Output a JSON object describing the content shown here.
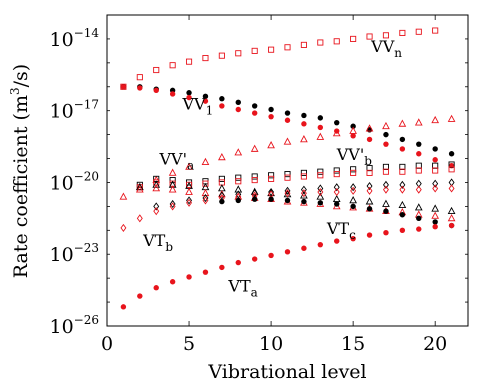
{
  "chart_data": {
    "type": "scatter",
    "xlabel": "Vibrational level",
    "ylabel": {
      "text": "Rate coefficient (",
      "unit_base": "m",
      "unit_exp": "3",
      "unit_rest": "/s)"
    },
    "xlim": [
      0,
      22
    ],
    "ylim_log10": [
      -26,
      -13
    ],
    "y_scale": "log",
    "x_ticks": [
      0,
      5,
      10,
      15,
      20
    ],
    "y_ticks": [
      {
        "base": "10",
        "exp": "−14"
      },
      {
        "base": "10",
        "exp": "−17"
      },
      {
        "base": "10",
        "exp": "−20"
      },
      {
        "base": "10",
        "exp": "−23"
      },
      {
        "base": "10",
        "exp": "−26"
      }
    ],
    "colors": {
      "black": "#000000",
      "red": "#e8141c"
    },
    "annotations": [
      {
        "label": "VV",
        "sub": "n",
        "at": [
          16.1,
          -14.3
        ]
      },
      {
        "label": "VV",
        "sub": "1",
        "at": [
          4.6,
          -16.7
        ]
      },
      {
        "label": "VV'",
        "sub": "a",
        "at": [
          3.2,
          -19.0
        ]
      },
      {
        "label": "VV'",
        "sub": "b",
        "at": [
          14.0,
          -18.8
        ]
      },
      {
        "label": "VT",
        "sub": "b",
        "at": [
          2.2,
          -22.4
        ]
      },
      {
        "label": "VT",
        "sub": "c",
        "at": [
          13.4,
          -21.9
        ]
      },
      {
        "label": "VT",
        "sub": "a",
        "at": [
          7.4,
          -24.3
        ]
      }
    ],
    "series": [
      {
        "marker": "square-open",
        "color": "#e8141c",
        "x": [
          1,
          2,
          3,
          4,
          5,
          6,
          7,
          8,
          9,
          10,
          11,
          12,
          13,
          14,
          15,
          16,
          17,
          18,
          19,
          20
        ],
        "log10_y": [
          -16.0,
          -15.6,
          -15.3,
          -15.1,
          -14.95,
          -14.8,
          -14.7,
          -14.6,
          -14.5,
          -14.45,
          -14.35,
          -14.25,
          -14.15,
          -14.1,
          -14.0,
          -13.9,
          -13.85,
          -13.75,
          -13.7,
          -13.65
        ]
      },
      {
        "marker": "dot",
        "color": "#000000",
        "x": [
          1,
          2,
          3,
          4,
          5,
          6,
          7,
          8,
          9,
          10,
          11,
          12,
          13,
          14,
          15,
          16,
          17,
          18,
          19,
          20,
          21
        ],
        "log10_y": [
          -16.0,
          -16.0,
          -16.1,
          -16.15,
          -16.25,
          -16.4,
          -16.5,
          -16.65,
          -16.8,
          -16.95,
          -17.1,
          -17.2,
          -17.3,
          -17.5,
          -17.65,
          -17.8,
          -18.0,
          -18.2,
          -18.4,
          -18.6,
          -18.8
        ]
      },
      {
        "marker": "dot",
        "color": "#e8141c",
        "x": [
          1,
          2,
          3,
          4,
          5,
          6,
          7,
          8,
          9,
          10,
          11,
          12,
          13,
          14,
          15,
          16,
          17,
          18,
          19,
          20,
          21
        ],
        "log10_y": [
          -16.0,
          -16.05,
          -16.15,
          -16.3,
          -16.45,
          -16.6,
          -16.8,
          -16.95,
          -17.1,
          -17.25,
          -17.4,
          -17.55,
          -17.7,
          -17.85,
          -18.05,
          -18.2,
          -18.4,
          -18.6,
          -18.8,
          -19.05,
          -19.3
        ]
      },
      {
        "marker": "triangle-open",
        "color": "#e8141c",
        "x": [
          1,
          2,
          3,
          4,
          5,
          6,
          7,
          8,
          9,
          10,
          11,
          12,
          13,
          14,
          15,
          16,
          17,
          18,
          19,
          20,
          21
        ],
        "log10_y": [
          -20.6,
          -20.2,
          -19.9,
          -19.6,
          -19.35,
          -19.15,
          -18.95,
          -18.75,
          -18.6,
          -18.45,
          -18.3,
          -18.2,
          -18.1,
          -17.95,
          -17.85,
          -17.75,
          -17.65,
          -17.55,
          -17.5,
          -17.4,
          -17.35
        ]
      },
      {
        "marker": "square-open",
        "color": "#000000",
        "x": [
          2,
          3,
          4,
          5,
          6,
          7,
          8,
          9,
          10,
          11,
          12,
          13,
          14,
          15,
          16,
          17,
          18,
          19,
          20,
          21
        ],
        "log10_y": [
          -20.1,
          -19.85,
          -19.9,
          -20.0,
          -19.95,
          -19.85,
          -19.8,
          -19.75,
          -19.7,
          -19.65,
          -19.6,
          -19.55,
          -19.5,
          -19.45,
          -19.4,
          -19.35,
          -19.35,
          -19.3,
          -19.3,
          -19.25
        ]
      },
      {
        "marker": "square-open",
        "color": "#e8141c",
        "x": [
          2,
          3,
          4,
          5,
          6,
          7,
          8,
          9,
          10,
          11,
          12,
          13,
          14,
          15,
          16,
          17,
          18,
          19,
          20,
          21
        ],
        "log10_y": [
          -20.2,
          -20.0,
          -20.05,
          -20.1,
          -20.05,
          -20.0,
          -19.95,
          -19.9,
          -19.85,
          -19.8,
          -19.75,
          -19.7,
          -19.65,
          -19.6,
          -19.6,
          -19.55,
          -19.55,
          -19.5,
          -19.5,
          -19.45
        ]
      },
      {
        "marker": "triangle-open",
        "color": "#000000",
        "x": [
          2,
          3,
          4,
          5,
          6,
          7,
          8,
          9,
          10,
          11,
          12,
          13,
          14,
          15,
          16,
          17,
          18,
          19,
          20,
          21
        ],
        "log10_y": [
          -20.2,
          -20.1,
          -20.1,
          -20.15,
          -20.2,
          -20.25,
          -20.3,
          -20.4,
          -20.45,
          -20.5,
          -20.55,
          -20.6,
          -20.7,
          -20.75,
          -20.8,
          -20.9,
          -20.95,
          -21.05,
          -21.1,
          -21.2
        ]
      },
      {
        "marker": "triangle-open",
        "color": "#e8141c",
        "x": [
          2,
          3,
          4,
          5,
          6,
          7,
          8,
          9,
          10,
          11,
          12,
          13,
          14,
          15,
          16,
          17,
          18,
          19,
          20,
          21
        ],
        "log10_y": [
          -20.3,
          -20.25,
          -20.3,
          -20.4,
          -20.45,
          -20.5,
          -20.6,
          -20.65,
          -20.7,
          -20.8,
          -20.85,
          -20.9,
          -21.0,
          -21.05,
          -21.1,
          -21.2,
          -21.25,
          -21.35,
          -21.4,
          -21.5
        ]
      },
      {
        "marker": "diamond-open",
        "color": "#000000",
        "x": [
          3,
          4,
          5,
          6,
          7,
          8,
          9,
          10,
          11,
          12,
          13,
          14,
          15,
          16,
          17,
          18,
          19,
          20,
          21
        ],
        "log10_y": [
          -21.0,
          -20.9,
          -20.75,
          -20.65,
          -20.55,
          -20.5,
          -20.45,
          -20.4,
          -20.35,
          -20.3,
          -20.25,
          -20.2,
          -20.2,
          -20.15,
          -20.1,
          -20.1,
          -20.05,
          -20.05,
          -20.0
        ]
      },
      {
        "marker": "diamond-open",
        "color": "#e8141c",
        "x": [
          1,
          2,
          3,
          4,
          5,
          6,
          7,
          8,
          9,
          10,
          11,
          12,
          13,
          14,
          15,
          16,
          17,
          18,
          19,
          20,
          21
        ],
        "log10_y": [
          -21.9,
          -21.5,
          -21.2,
          -21.0,
          -20.85,
          -20.75,
          -20.65,
          -20.6,
          -20.55,
          -20.5,
          -20.45,
          -20.45,
          -20.4,
          -20.4,
          -20.35,
          -20.35,
          -20.3,
          -20.3,
          -20.3,
          -20.25,
          -20.25
        ]
      },
      {
        "marker": "dot",
        "color": "#000000",
        "x": [
          7,
          8,
          9,
          10,
          11,
          12,
          13,
          14,
          15,
          16,
          17,
          18,
          19,
          20,
          21
        ],
        "log10_y": [
          -20.8,
          -20.75,
          -20.7,
          -20.7,
          -20.75,
          -20.8,
          -20.85,
          -20.9,
          -21.0,
          -21.1,
          -21.2,
          -21.35,
          -21.5,
          -21.65,
          -21.8
        ]
      },
      {
        "marker": "dot",
        "color": "#e8141c",
        "x": [
          1,
          2,
          3,
          4,
          5,
          6,
          7,
          8,
          9,
          10,
          11,
          12,
          13,
          14,
          15,
          16,
          17,
          18,
          19,
          20,
          21
        ],
        "log10_y": [
          -25.2,
          -24.75,
          -24.4,
          -24.15,
          -23.95,
          -23.75,
          -23.55,
          -23.35,
          -23.2,
          -23.05,
          -22.9,
          -22.75,
          -22.6,
          -22.45,
          -22.35,
          -22.2,
          -22.1,
          -22.0,
          -21.95,
          -21.85,
          -21.8
        ]
      }
    ]
  }
}
